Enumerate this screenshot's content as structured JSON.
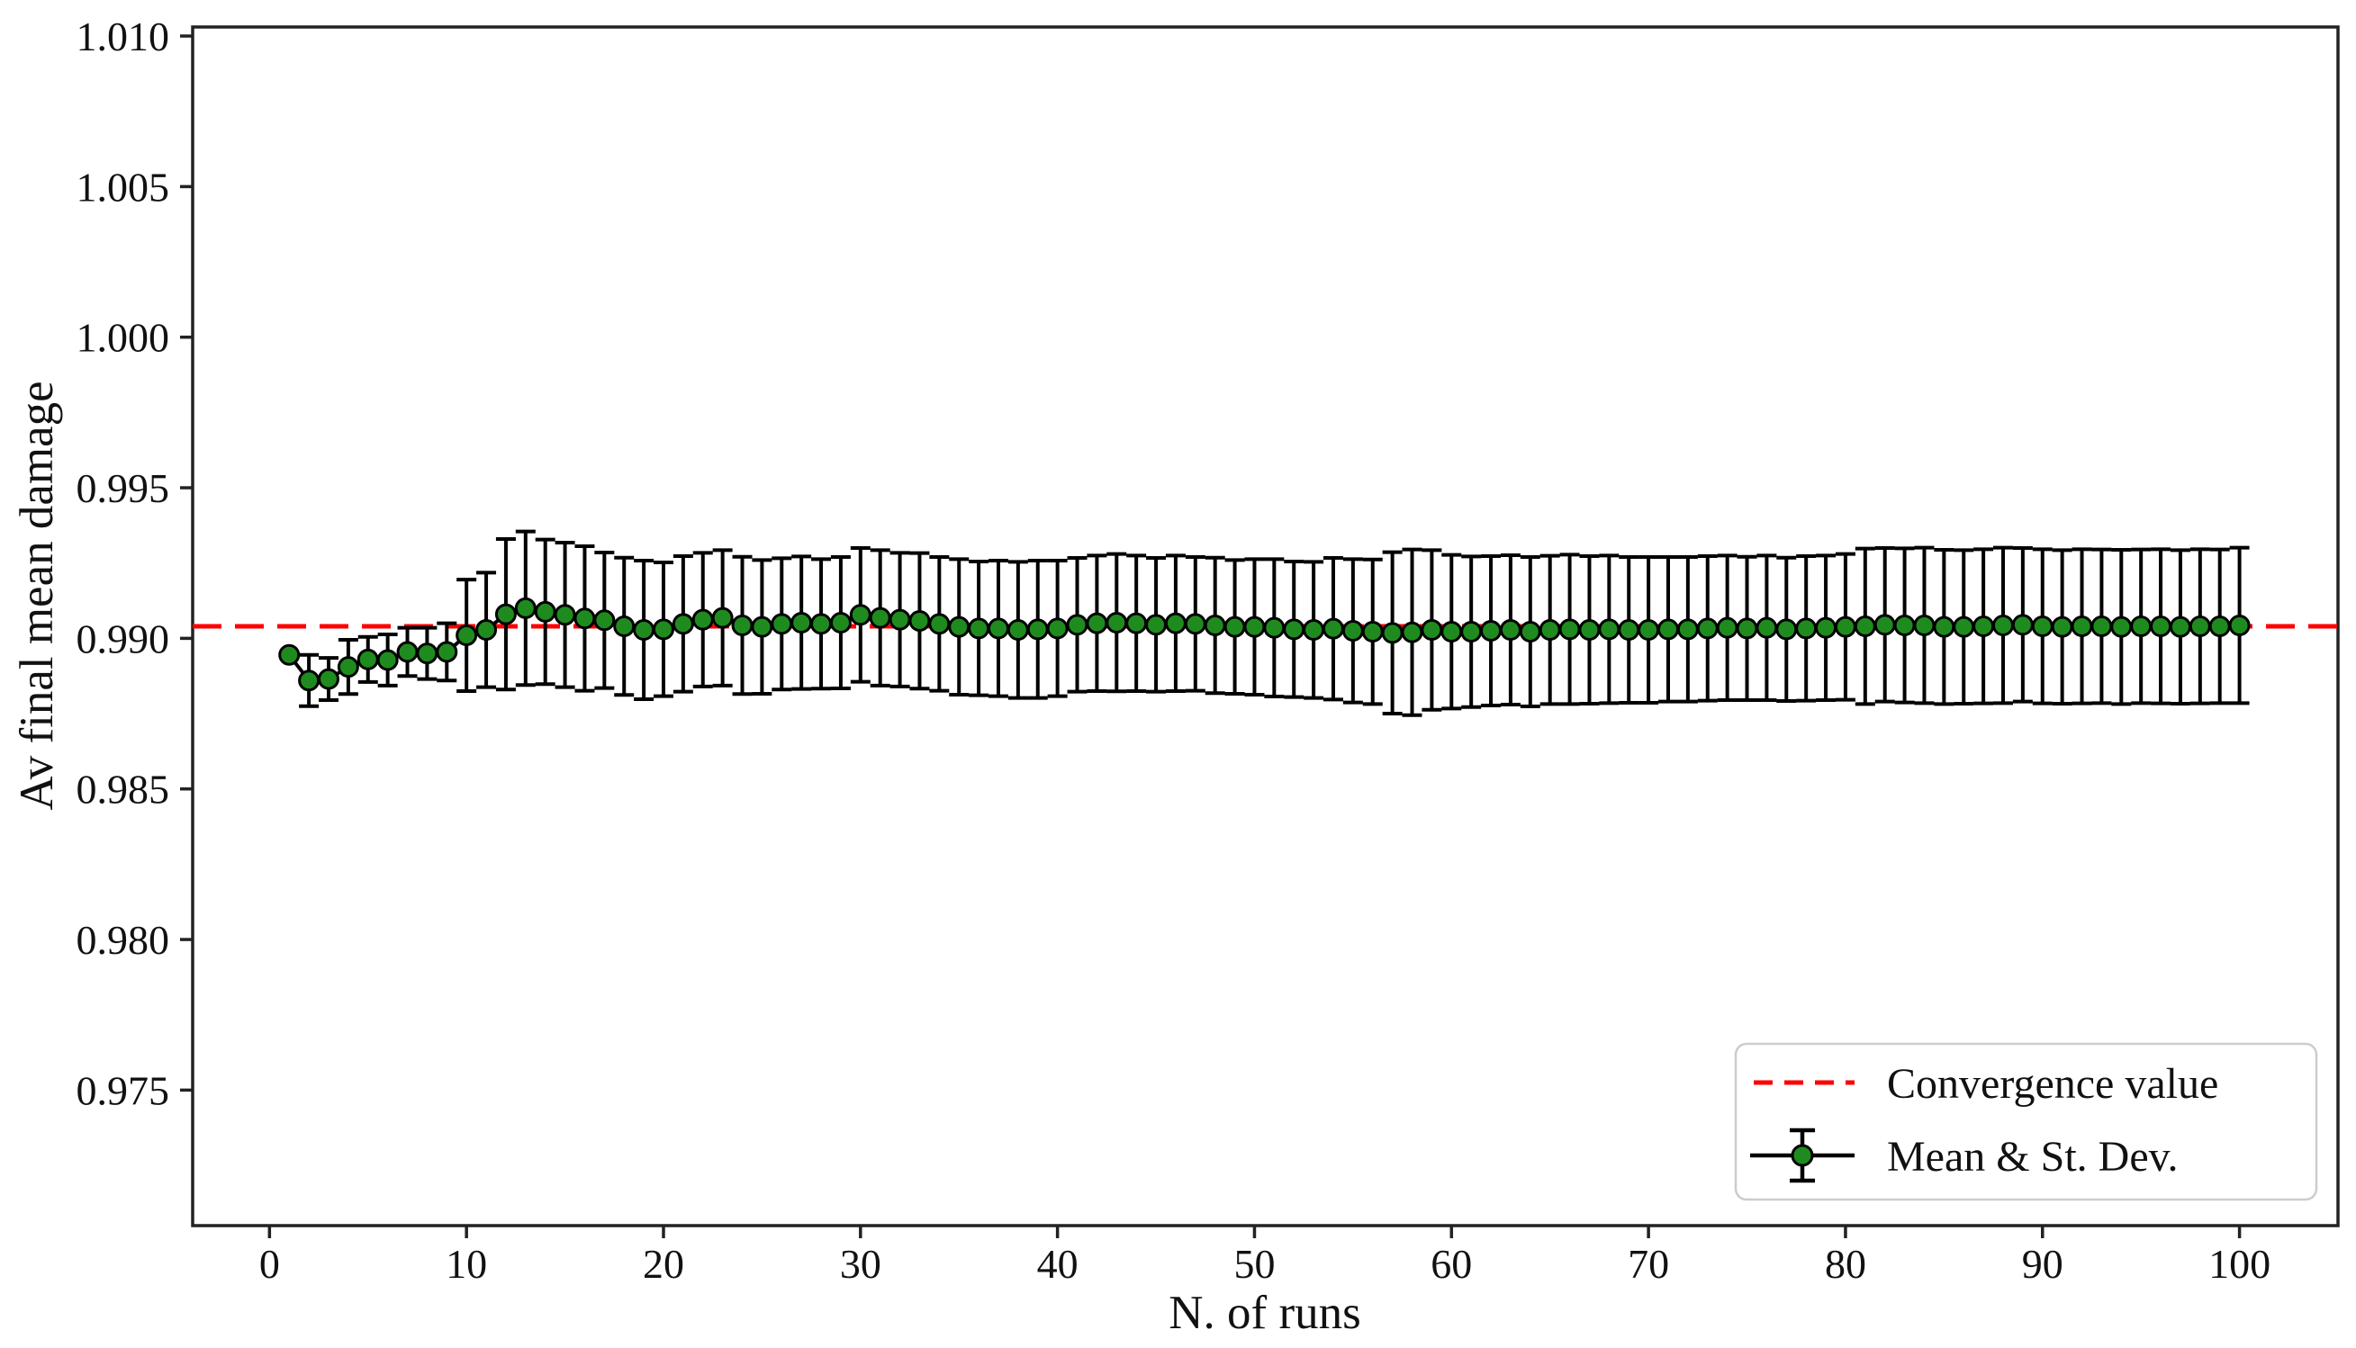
{
  "chart_data": {
    "type": "line",
    "variant": "errorbar-scatter",
    "title": "",
    "xlabel": "N. of runs",
    "ylabel": "Av final mean damage",
    "xlim": [
      -3.9,
      105.0
    ],
    "ylim": [
      0.9705,
      1.0103
    ],
    "grid": false,
    "legend_position": "lower right",
    "x_ticks": [
      0,
      10,
      20,
      30,
      40,
      50,
      60,
      70,
      80,
      90,
      100
    ],
    "y_ticks": [
      0.975,
      0.98,
      0.985,
      0.99,
      0.995,
      1.0,
      1.005,
      1.01
    ],
    "y_tick_decimals": 3,
    "convergence": {
      "label": "Convergence value",
      "value": 0.9904,
      "color": "#ff0000",
      "style": "dashed"
    },
    "errorbar_series": {
      "label": "Mean & St. Dev.",
      "marker_color": "#1f8b1f",
      "marker_edge_color": "#000000",
      "line_color": "#000000",
      "x": [
        1,
        2,
        3,
        4,
        5,
        6,
        7,
        8,
        9,
        10,
        11,
        12,
        13,
        14,
        15,
        16,
        17,
        18,
        19,
        20,
        21,
        22,
        23,
        24,
        25,
        26,
        27,
        28,
        29,
        30,
        31,
        32,
        33,
        34,
        35,
        36,
        37,
        38,
        39,
        40,
        41,
        42,
        43,
        44,
        45,
        46,
        47,
        48,
        49,
        50,
        51,
        52,
        53,
        54,
        55,
        56,
        57,
        58,
        59,
        60,
        61,
        62,
        63,
        64,
        65,
        66,
        67,
        68,
        69,
        70,
        71,
        72,
        73,
        74,
        75,
        76,
        77,
        78,
        79,
        80,
        81,
        82,
        83,
        84,
        85,
        86,
        87,
        88,
        89,
        90,
        91,
        92,
        93,
        94,
        95,
        96,
        97,
        98,
        99,
        100
      ],
      "mean": [
        0.98945,
        0.9886,
        0.98865,
        0.98905,
        0.9893,
        0.98928,
        0.98955,
        0.9895,
        0.98955,
        0.9901,
        0.99028,
        0.9908,
        0.991,
        0.99088,
        0.99078,
        0.99066,
        0.9906,
        0.9904,
        0.99028,
        0.9903,
        0.99048,
        0.99062,
        0.99068,
        0.99043,
        0.99038,
        0.99048,
        0.99052,
        0.99048,
        0.99052,
        0.99078,
        0.99068,
        0.99062,
        0.99058,
        0.99048,
        0.99038,
        0.99033,
        0.99033,
        0.99028,
        0.9903,
        0.99033,
        0.99045,
        0.9905,
        0.99052,
        0.9905,
        0.99045,
        0.9905,
        0.99048,
        0.99043,
        0.99038,
        0.99038,
        0.99035,
        0.9903,
        0.99028,
        0.99032,
        0.99025,
        0.99022,
        0.99018,
        0.9902,
        0.99028,
        0.99022,
        0.99022,
        0.99025,
        0.99028,
        0.99022,
        0.99028,
        0.9903,
        0.99028,
        0.9903,
        0.99028,
        0.99028,
        0.9903,
        0.9903,
        0.99033,
        0.99035,
        0.99033,
        0.99035,
        0.9903,
        0.99033,
        0.99035,
        0.99038,
        0.9904,
        0.99045,
        0.99043,
        0.99043,
        0.99038,
        0.99038,
        0.9904,
        0.99043,
        0.99045,
        0.9904,
        0.99038,
        0.9904,
        0.9904,
        0.99038,
        0.9904,
        0.9904,
        0.99038,
        0.9904,
        0.9904,
        0.99043
      ],
      "std": [
        0.0,
        0.00085,
        0.0007,
        0.0009,
        0.00075,
        0.00085,
        0.0008,
        0.00085,
        0.00095,
        0.00185,
        0.0019,
        0.0025,
        0.00255,
        0.0024,
        0.0024,
        0.0024,
        0.00225,
        0.00228,
        0.0023,
        0.00222,
        0.00225,
        0.00222,
        0.00225,
        0.00228,
        0.00222,
        0.00218,
        0.0022,
        0.00215,
        0.00218,
        0.00222,
        0.00225,
        0.00222,
        0.00225,
        0.00222,
        0.00225,
        0.00222,
        0.00225,
        0.00226,
        0.00228,
        0.00225,
        0.00222,
        0.00225,
        0.00228,
        0.00225,
        0.00222,
        0.00225,
        0.00222,
        0.00225,
        0.00222,
        0.00225,
        0.00228,
        0.00225,
        0.00226,
        0.00235,
        0.00238,
        0.0024,
        0.00268,
        0.00275,
        0.00265,
        0.00255,
        0.0025,
        0.00248,
        0.00248,
        0.00248,
        0.00246,
        0.00248,
        0.00245,
        0.00245,
        0.00242,
        0.00242,
        0.0024,
        0.0024,
        0.0024,
        0.0024,
        0.00238,
        0.0024,
        0.00238,
        0.0024,
        0.0024,
        0.00242,
        0.00258,
        0.00255,
        0.00256,
        0.00258,
        0.00256,
        0.00255,
        0.00256,
        0.00258,
        0.00255,
        0.00256,
        0.00255,
        0.00256,
        0.00255,
        0.00256,
        0.00255,
        0.00256,
        0.00255,
        0.00256,
        0.00255,
        0.00258
      ]
    },
    "colors": {
      "frame": "#222222",
      "tick": "#222222",
      "text": "#111111",
      "legend_border": "#cccccc",
      "background": "#ffffff"
    }
  }
}
